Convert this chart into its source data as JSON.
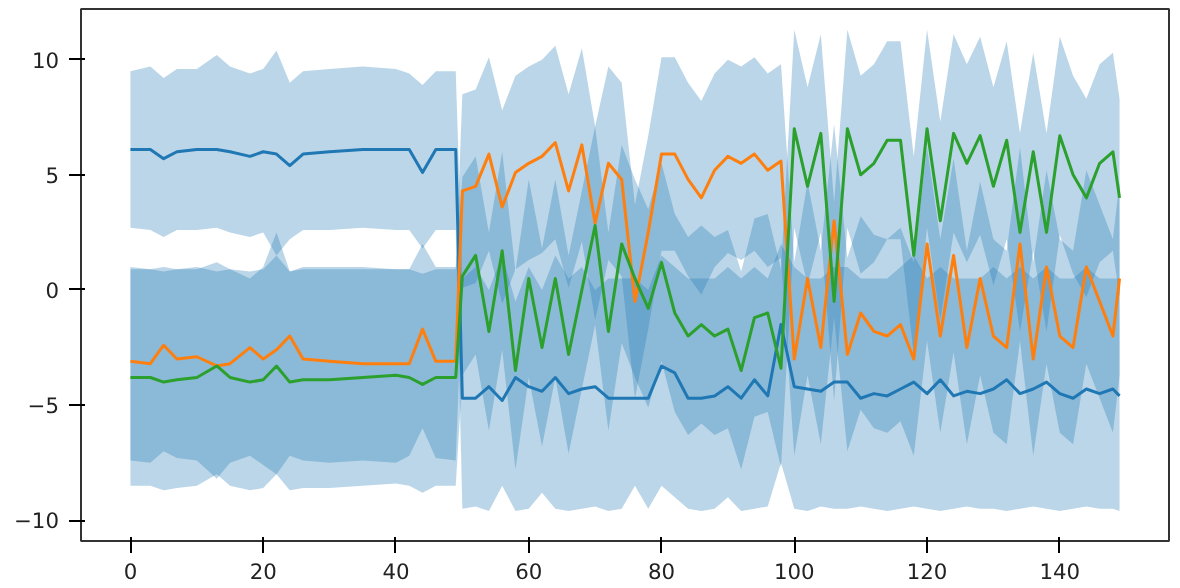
{
  "chart_data": {
    "type": "line",
    "xlim": [
      -7.45,
      156.45
    ],
    "ylim": [
      -10.9,
      12.2
    ],
    "xticks": [
      0,
      20,
      40,
      60,
      80,
      100,
      120,
      140
    ],
    "yticks": [
      -10,
      -5,
      0,
      5,
      10
    ],
    "grid": false,
    "x": [
      0,
      3,
      5,
      7,
      10,
      13,
      15,
      18,
      20,
      22,
      24,
      26,
      30,
      35,
      40,
      42,
      44,
      46,
      49,
      50,
      52,
      54,
      56,
      58,
      60,
      62,
      64,
      66,
      68,
      70,
      72,
      74,
      76,
      78,
      80,
      82,
      84,
      86,
      88,
      90,
      92,
      94,
      96,
      98,
      100,
      102,
      104,
      106,
      108,
      110,
      112,
      114,
      116,
      118,
      120,
      122,
      124,
      126,
      128,
      130,
      132,
      134,
      136,
      138,
      140,
      142,
      144,
      146,
      148,
      149
    ],
    "series": [
      {
        "color": "#1f77b4",
        "values": [
          6.1,
          6.1,
          5.7,
          6.0,
          6.1,
          6.1,
          6.0,
          5.8,
          6.0,
          5.9,
          5.4,
          5.9,
          6.0,
          6.1,
          6.1,
          6.1,
          5.1,
          6.1,
          6.1,
          -4.7,
          -4.7,
          -4.2,
          -4.8,
          -3.8,
          -4.2,
          -4.4,
          -3.8,
          -4.5,
          -4.3,
          -4.2,
          -4.7,
          -4.7,
          -4.7,
          -4.7,
          -3.3,
          -3.6,
          -4.7,
          -4.7,
          -4.6,
          -4.2,
          -4.7,
          -3.9,
          -4.6,
          -1.5,
          -4.2,
          -4.3,
          -4.4,
          -4.0,
          -4.0,
          -4.7,
          -4.5,
          -4.6,
          -4.3,
          -4.0,
          -4.5,
          -3.9,
          -4.6,
          -4.4,
          -4.5,
          -4.3,
          -3.9,
          -4.5,
          -4.3,
          -4.0,
          -4.5,
          -4.7,
          -4.3,
          -4.5,
          -4.3,
          -4.6
        ],
        "upper": [
          9.5,
          9.7,
          9.2,
          9.6,
          9.6,
          10.2,
          9.7,
          9.4,
          9.6,
          10.4,
          9.0,
          9.5,
          9.6,
          9.7,
          9.6,
          9.4,
          8.9,
          9.5,
          9.5,
          0.5,
          1.0,
          0.0,
          1.5,
          -0.5,
          1.0,
          0.0,
          1.5,
          0.5,
          1.0,
          0.0,
          0.5,
          0.5,
          0.5,
          0.0,
          1.5,
          1.0,
          0.5,
          0.5,
          0.5,
          1.0,
          0.5,
          1.0,
          0.5,
          2.0,
          1.0,
          0.5,
          0.5,
          1.0,
          1.0,
          0.5,
          0.5,
          0.5,
          1.0,
          1.5,
          0.5,
          1.0,
          0.5,
          0.5,
          0.5,
          1.0,
          0.5,
          1.0,
          0.5,
          1.0,
          0.5,
          0.5,
          1.0,
          0.5,
          0.5,
          0.5
        ],
        "lower": [
          2.7,
          2.6,
          2.3,
          2.6,
          2.6,
          2.7,
          2.5,
          2.3,
          2.5,
          1.5,
          2.2,
          2.6,
          2.6,
          2.7,
          2.6,
          2.6,
          1.8,
          2.6,
          2.6,
          -9.5,
          -9.4,
          -9.6,
          -8.5,
          -9.6,
          -9.5,
          -8.8,
          -9.5,
          -9.6,
          -9.5,
          -9.4,
          -9.6,
          -9.5,
          -8.5,
          -9.5,
          -8.5,
          -9.0,
          -9.5,
          -9.6,
          -9.5,
          -9.0,
          -9.6,
          -9.5,
          -9.4,
          -7.5,
          -9.5,
          -9.6,
          -9.4,
          -9.5,
          -9.5,
          -9.4,
          -9.5,
          -9.6,
          -9.5,
          -9.4,
          -9.5,
          -9.6,
          -9.5,
          -9.4,
          -9.5,
          -9.5,
          -9.6,
          -9.5,
          -9.4,
          -9.5,
          -9.6,
          -9.5,
          -9.4,
          -9.5,
          -9.5,
          -9.6
        ]
      },
      {
        "color": "#ff7f0e",
        "values": [
          -3.1,
          -3.2,
          -2.4,
          -3.0,
          -2.9,
          -3.3,
          -3.2,
          -2.5,
          -3.0,
          -2.6,
          -2.0,
          -3.0,
          -3.1,
          -3.2,
          -3.2,
          -3.2,
          -1.7,
          -3.1,
          -3.1,
          4.3,
          4.5,
          5.9,
          3.6,
          5.1,
          5.5,
          5.8,
          6.4,
          4.3,
          6.3,
          2.9,
          5.5,
          4.8,
          -0.5,
          2.5,
          5.9,
          5.9,
          4.8,
          4.0,
          5.2,
          5.8,
          5.5,
          5.9,
          5.2,
          5.6,
          -3.0,
          0.5,
          -2.5,
          3.0,
          -2.8,
          -1.0,
          -1.8,
          -2.0,
          -1.5,
          -3.0,
          2.0,
          -2.0,
          1.5,
          -2.5,
          0.5,
          -2.0,
          -2.5,
          2.0,
          -3.0,
          1.0,
          -2.0,
          -2.5,
          1.0,
          -0.5,
          -2.0,
          0.5
        ],
        "upper": [
          1.0,
          0.9,
          1.0,
          0.9,
          1.0,
          0.8,
          0.9,
          0.5,
          1.0,
          2.5,
          0.8,
          1.0,
          1.0,
          1.0,
          0.9,
          0.9,
          2.0,
          1.0,
          1.0,
          8.5,
          8.7,
          10.1,
          7.8,
          9.3,
          9.7,
          10.0,
          10.6,
          8.5,
          10.5,
          7.1,
          9.7,
          9.0,
          3.7,
          6.7,
          10.1,
          10.1,
          9.0,
          8.2,
          9.4,
          10.0,
          9.7,
          10.1,
          9.4,
          9.8,
          1.2,
          4.7,
          1.7,
          7.2,
          1.4,
          3.2,
          2.4,
          2.2,
          2.7,
          1.2,
          6.2,
          2.2,
          5.7,
          1.7,
          4.7,
          2.2,
          1.7,
          6.2,
          1.2,
          5.2,
          2.2,
          1.7,
          5.2,
          3.7,
          2.2,
          4.7
        ],
        "lower": [
          -7.4,
          -7.5,
          -7.0,
          -7.3,
          -7.4,
          -8.2,
          -7.5,
          -7.2,
          -7.6,
          -8.0,
          -7.2,
          -7.4,
          -7.5,
          -7.4,
          -7.5,
          -7.2,
          -6.0,
          -7.3,
          -7.4,
          0.1,
          0.3,
          1.7,
          -0.6,
          0.9,
          1.3,
          1.6,
          2.2,
          0.1,
          2.1,
          -1.3,
          1.3,
          0.6,
          -4.7,
          -1.7,
          1.7,
          1.7,
          0.6,
          -0.2,
          1.0,
          1.6,
          1.3,
          1.7,
          1.0,
          1.4,
          -7.2,
          -3.7,
          -6.7,
          -1.2,
          -7.0,
          -5.2,
          -6.0,
          -6.2,
          -5.7,
          -7.2,
          -2.2,
          -6.2,
          -2.7,
          -6.7,
          -3.7,
          -6.2,
          -6.7,
          -2.2,
          -7.2,
          -3.2,
          -6.2,
          -6.7,
          -3.2,
          -4.7,
          -6.2,
          -3.7
        ]
      },
      {
        "color": "#2ca02c",
        "values": [
          -3.8,
          -3.8,
          -4.0,
          -3.9,
          -3.8,
          -3.3,
          -3.8,
          -4.0,
          -3.9,
          -3.3,
          -4.0,
          -3.9,
          -3.9,
          -3.8,
          -3.7,
          -3.8,
          -4.1,
          -3.8,
          -3.8,
          0.6,
          1.5,
          -1.8,
          1.7,
          -3.5,
          0.5,
          -2.5,
          0.5,
          -2.8,
          0.0,
          2.8,
          -1.8,
          2.0,
          0.5,
          -0.8,
          1.2,
          -1.0,
          -2.0,
          -1.5,
          -2.0,
          -1.7,
          -3.5,
          -1.2,
          -1.0,
          -3.4,
          7.0,
          4.5,
          6.8,
          -0.5,
          7.0,
          5.0,
          5.5,
          6.5,
          6.5,
          1.5,
          7.0,
          3.0,
          6.8,
          5.5,
          6.7,
          4.5,
          6.5,
          2.5,
          6.0,
          2.5,
          6.7,
          5.0,
          4.0,
          5.5,
          6.0,
          4.0
        ],
        "upper": [
          0.9,
          0.9,
          0.8,
          0.9,
          0.9,
          1.2,
          0.9,
          0.8,
          0.9,
          1.5,
          0.8,
          0.9,
          0.9,
          0.9,
          0.9,
          0.9,
          0.7,
          0.9,
          0.9,
          4.9,
          5.8,
          2.5,
          6.0,
          0.8,
          4.8,
          1.8,
          4.8,
          1.5,
          4.3,
          7.1,
          2.5,
          6.3,
          4.8,
          3.5,
          5.5,
          3.3,
          2.3,
          2.8,
          2.3,
          2.6,
          0.8,
          3.1,
          3.3,
          0.9,
          11.3,
          8.8,
          11.1,
          3.8,
          11.3,
          9.3,
          9.8,
          10.8,
          10.8,
          5.8,
          11.3,
          7.3,
          11.1,
          9.8,
          11.0,
          8.8,
          10.8,
          6.8,
          10.3,
          6.8,
          11.0,
          9.3,
          8.3,
          9.8,
          10.3,
          8.3
        ],
        "lower": [
          -8.5,
          -8.5,
          -8.7,
          -8.6,
          -8.5,
          -8.0,
          -8.5,
          -8.7,
          -8.6,
          -8.0,
          -8.7,
          -8.6,
          -8.6,
          -8.5,
          -8.4,
          -8.5,
          -8.8,
          -8.5,
          -8.5,
          -3.7,
          -2.8,
          -6.1,
          -2.6,
          -7.8,
          -3.8,
          -6.8,
          -3.8,
          -7.1,
          -4.3,
          -1.5,
          -6.1,
          -2.3,
          -3.8,
          -5.1,
          -3.1,
          -5.3,
          -6.3,
          -5.8,
          -6.3,
          -6.0,
          -7.8,
          -5.5,
          -5.3,
          -7.7,
          2.7,
          0.2,
          2.5,
          -4.8,
          2.7,
          0.7,
          1.2,
          2.2,
          2.2,
          -2.8,
          2.7,
          -1.3,
          2.5,
          1.2,
          2.4,
          0.2,
          2.2,
          -1.8,
          1.7,
          -1.8,
          2.4,
          0.7,
          -0.3,
          1.2,
          1.7,
          -0.3
        ]
      }
    ]
  }
}
